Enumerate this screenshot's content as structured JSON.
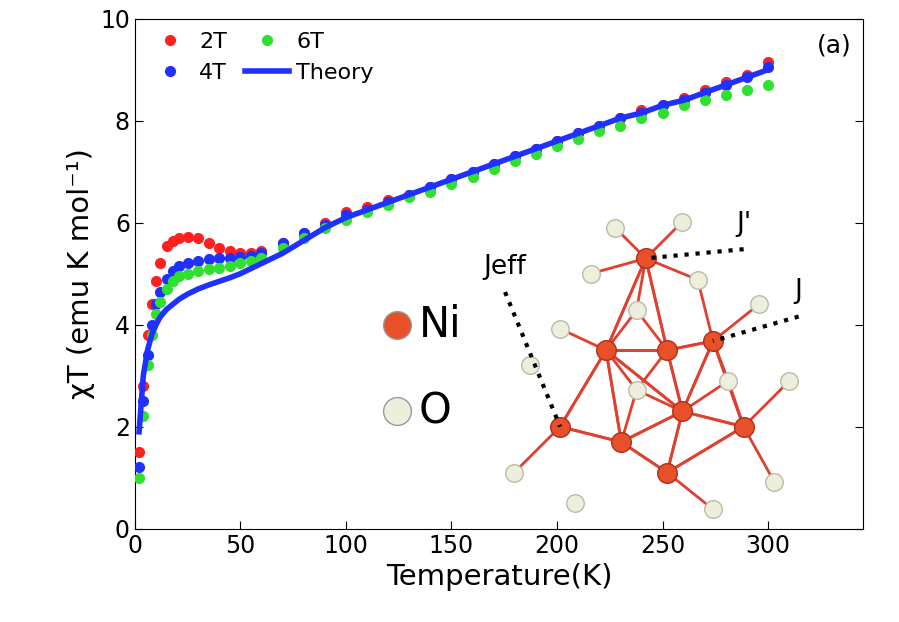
{
  "chart_data": {
    "type": "scatter",
    "x_label": "Temperature(K)",
    "y_label": "χT (emu K mol⁻¹)",
    "panel_label": "(a)",
    "xlim": [
      0,
      345
    ],
    "xticks": [
      0,
      50,
      100,
      150,
      200,
      250,
      300
    ],
    "ylim": [
      0,
      10
    ],
    "yticks": [
      0,
      2,
      4,
      6,
      8,
      10
    ],
    "legend": "upper left",
    "x": [
      2,
      4,
      6,
      8,
      10,
      12,
      15,
      18,
      21,
      25,
      30,
      35,
      40,
      45,
      50,
      55,
      60,
      70,
      80,
      90,
      100,
      110,
      120,
      130,
      140,
      150,
      160,
      170,
      180,
      190,
      200,
      210,
      220,
      230,
      240,
      250,
      260,
      270,
      280,
      290,
      300
    ],
    "series": [
      {
        "name": "2T",
        "color": "#ff2020",
        "marker": "circle",
        "values": [
          1.5,
          2.8,
          3.8,
          4.4,
          4.85,
          5.2,
          5.55,
          5.65,
          5.7,
          5.72,
          5.7,
          5.6,
          5.5,
          5.45,
          5.4,
          5.4,
          5.45,
          5.6,
          5.8,
          6.0,
          6.2,
          6.3,
          6.45,
          6.55,
          6.7,
          6.85,
          7.0,
          7.15,
          7.3,
          7.45,
          7.6,
          7.75,
          7.9,
          8.05,
          8.2,
          8.3,
          8.45,
          8.6,
          8.75,
          8.9,
          9.15
        ]
      },
      {
        "name": "4T",
        "color": "#2030ff",
        "marker": "circle",
        "values": [
          1.2,
          2.5,
          3.4,
          4.0,
          4.4,
          4.65,
          4.9,
          5.05,
          5.15,
          5.2,
          5.25,
          5.28,
          5.3,
          5.3,
          5.32,
          5.35,
          5.4,
          5.6,
          5.8,
          5.95,
          6.15,
          6.25,
          6.4,
          6.55,
          6.7,
          6.85,
          7.0,
          7.15,
          7.3,
          7.45,
          7.6,
          7.75,
          7.9,
          8.05,
          8.15,
          8.3,
          8.4,
          8.55,
          8.7,
          8.85,
          9.05
        ]
      },
      {
        "name": "6T",
        "color": "#30e030",
        "marker": "circle",
        "values": [
          1.0,
          2.2,
          3.2,
          3.8,
          4.2,
          4.45,
          4.7,
          4.85,
          4.95,
          5.0,
          5.05,
          5.1,
          5.12,
          5.15,
          5.2,
          5.25,
          5.3,
          5.5,
          5.7,
          5.9,
          6.05,
          6.2,
          6.35,
          6.5,
          6.6,
          6.75,
          6.9,
          7.05,
          7.2,
          7.35,
          7.5,
          7.65,
          7.8,
          7.9,
          8.05,
          8.15,
          8.3,
          8.4,
          8.5,
          8.6,
          8.7
        ]
      },
      {
        "name": "Theory",
        "color": "#2030ff",
        "type": "line",
        "line_style": "solid",
        "values": [
          1.9,
          3.0,
          3.5,
          3.8,
          4.0,
          4.15,
          4.3,
          4.4,
          4.5,
          4.6,
          4.7,
          4.78,
          4.85,
          4.92,
          5.0,
          5.1,
          5.2,
          5.4,
          5.65,
          5.9,
          6.1,
          6.25,
          6.4,
          6.55,
          6.7,
          6.85,
          7.0,
          7.15,
          7.3,
          7.45,
          7.6,
          7.75,
          7.9,
          8.05,
          8.15,
          8.3,
          8.4,
          8.55,
          8.7,
          8.85,
          9.0
        ]
      }
    ],
    "annotations": {
      "atoms": [
        {
          "text": "Ni",
          "color": "#e8502a"
        },
        {
          "text": "O",
          "color": "#eeeedd"
        }
      ],
      "couplings": [
        "Jeff",
        "J'",
        "J"
      ]
    }
  }
}
